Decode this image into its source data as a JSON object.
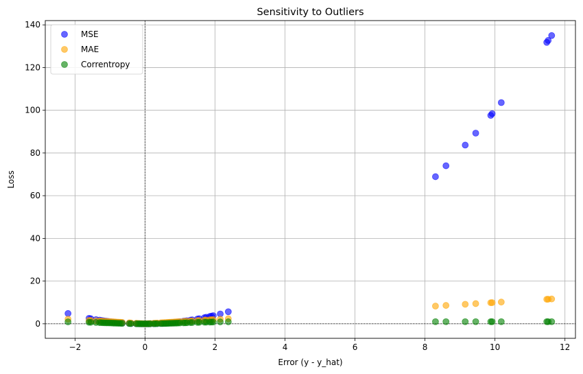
{
  "chart_data": {
    "type": "scatter",
    "title": "Sensitivity to Outliers",
    "xlabel": "Error (y - y_hat)",
    "ylabel": "Loss",
    "xlim": [
      -2.85,
      12.3
    ],
    "ylim": [
      -6.8,
      142
    ],
    "xticks": [
      -2,
      0,
      2,
      4,
      6,
      8,
      10,
      12
    ],
    "yticks": [
      0,
      20,
      40,
      60,
      80,
      100,
      120,
      140
    ],
    "grid": true,
    "legend_position": "top-left",
    "reference_lines": {
      "x": 0,
      "y": 0
    },
    "x": [
      -2.2,
      -1.6,
      -1.55,
      -1.4,
      -1.3,
      -1.25,
      -1.2,
      -1.15,
      -1.1,
      -1.05,
      -1.0,
      -0.95,
      -0.9,
      -0.85,
      -0.8,
      -0.75,
      -0.7,
      -0.65,
      -0.45,
      -0.4,
      -0.25,
      -0.2,
      -0.15,
      -0.1,
      -0.05,
      0.0,
      0.05,
      0.1,
      0.15,
      0.25,
      0.3,
      0.35,
      0.45,
      0.5,
      0.55,
      0.6,
      0.65,
      0.7,
      0.75,
      0.8,
      0.85,
      0.9,
      0.95,
      1.0,
      1.1,
      1.15,
      1.2,
      1.3,
      1.35,
      1.5,
      1.55,
      1.7,
      1.75,
      1.85,
      1.9,
      1.95,
      2.15,
      2.38,
      8.3,
      8.6,
      9.15,
      9.45,
      9.88,
      9.92,
      10.18,
      11.48,
      11.52,
      11.62
    ],
    "series": [
      {
        "name": "MSE",
        "color": "#0000ff",
        "values": [
          4.84,
          2.56,
          2.4,
          1.96,
          1.69,
          1.56,
          1.44,
          1.32,
          1.21,
          1.1,
          1.0,
          0.9,
          0.81,
          0.72,
          0.64,
          0.56,
          0.49,
          0.42,
          0.2,
          0.16,
          0.06,
          0.04,
          0.02,
          0.01,
          0.0,
          0.0,
          0.0,
          0.01,
          0.02,
          0.06,
          0.09,
          0.12,
          0.2,
          0.25,
          0.3,
          0.36,
          0.42,
          0.49,
          0.56,
          0.64,
          0.72,
          0.81,
          0.9,
          1.0,
          1.21,
          1.32,
          1.44,
          1.69,
          1.82,
          2.25,
          2.4,
          2.89,
          3.06,
          3.42,
          3.61,
          3.8,
          4.62,
          5.66,
          68.9,
          74.0,
          83.7,
          89.3,
          97.6,
          98.4,
          103.6,
          131.8,
          132.7,
          135.0
        ]
      },
      {
        "name": "MAE",
        "color": "#ffa500",
        "values": [
          2.2,
          1.6,
          1.55,
          1.4,
          1.3,
          1.25,
          1.2,
          1.15,
          1.1,
          1.05,
          1.0,
          0.95,
          0.9,
          0.85,
          0.8,
          0.75,
          0.7,
          0.65,
          0.45,
          0.4,
          0.25,
          0.2,
          0.15,
          0.1,
          0.05,
          0.0,
          0.05,
          0.1,
          0.15,
          0.25,
          0.3,
          0.35,
          0.45,
          0.5,
          0.55,
          0.6,
          0.65,
          0.7,
          0.75,
          0.8,
          0.85,
          0.9,
          0.95,
          1.0,
          1.1,
          1.15,
          1.2,
          1.3,
          1.35,
          1.5,
          1.55,
          1.7,
          1.75,
          1.85,
          1.9,
          1.95,
          2.15,
          2.38,
          8.3,
          8.6,
          9.15,
          9.45,
          9.88,
          9.92,
          10.18,
          11.48,
          11.52,
          11.62
        ]
      },
      {
        "name": "Correntropy",
        "color": "#008000",
        "values": [
          0.91,
          0.72,
          0.7,
          0.62,
          0.57,
          0.54,
          0.51,
          0.48,
          0.45,
          0.42,
          0.39,
          0.36,
          0.33,
          0.3,
          0.27,
          0.24,
          0.22,
          0.19,
          0.1,
          0.08,
          0.03,
          0.02,
          0.01,
          0.0,
          0.0,
          0.0,
          0.0,
          0.0,
          0.01,
          0.03,
          0.04,
          0.06,
          0.1,
          0.12,
          0.14,
          0.16,
          0.19,
          0.22,
          0.24,
          0.27,
          0.3,
          0.33,
          0.36,
          0.39,
          0.45,
          0.48,
          0.51,
          0.57,
          0.6,
          0.68,
          0.7,
          0.76,
          0.78,
          0.82,
          0.84,
          0.85,
          0.9,
          0.94,
          1.0,
          1.0,
          1.0,
          1.0,
          1.0,
          1.0,
          1.0,
          1.0,
          1.0,
          1.0
        ]
      }
    ]
  }
}
